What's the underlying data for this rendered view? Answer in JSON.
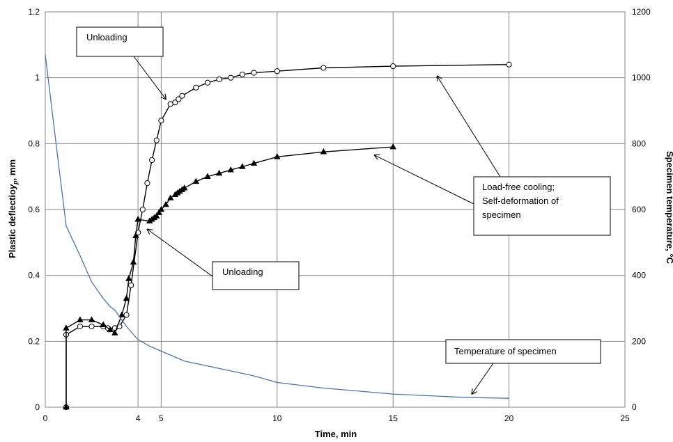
{
  "chart_data": {
    "type": "line",
    "xlabel": "Time, min",
    "ylabel": "Plastic deflection y_p, mm",
    "ylabel_main": "Plastic deflectio",
    "ylabel_sym": "y",
    "ylabel_sub": "p",
    "ylabel_tail": ", mm",
    "y2label": "Specimen temperature, °C",
    "xlim": [
      0,
      25
    ],
    "ylim": [
      0,
      1.2
    ],
    "y2lim": [
      0,
      1200
    ],
    "xticks": [
      0,
      4,
      5,
      10,
      15,
      20,
      25
    ],
    "yticks": [
      0,
      0.2,
      0.4,
      0.6,
      0.8,
      1,
      1.2
    ],
    "y2ticks": [
      0,
      200,
      400,
      600,
      800,
      1000,
      1200
    ],
    "grid": true,
    "series": [
      {
        "marker": "circle",
        "axis": "left",
        "color": "#000000",
        "x": [
          0.9,
          0.9,
          1.5,
          2.0,
          2.5,
          2.7,
          3.0,
          3.2,
          3.5,
          3.7,
          4.0,
          4.2,
          4.4,
          4.6,
          4.8,
          5.0,
          5.4,
          5.6,
          5.75,
          5.9,
          6.5,
          7.0,
          7.5,
          8.0,
          8.5,
          9.0,
          10.0,
          12.0,
          15.0,
          20.0
        ],
        "y": [
          0.0,
          0.22,
          0.245,
          0.245,
          0.245,
          0.24,
          0.24,
          0.245,
          0.28,
          0.37,
          0.53,
          0.6,
          0.68,
          0.75,
          0.81,
          0.87,
          0.92,
          0.925,
          0.935,
          0.945,
          0.97,
          0.985,
          0.995,
          1.0,
          1.01,
          1.015,
          1.02,
          1.03,
          1.035,
          1.04
        ]
      },
      {
        "marker": "triangle",
        "axis": "left",
        "color": "#000000",
        "x": [
          0.9,
          0.9,
          1.5,
          2.0,
          2.5,
          2.8,
          3.0,
          3.3,
          3.5,
          3.6,
          3.8,
          3.9,
          4.0,
          4.5,
          4.6,
          4.7,
          4.8,
          4.9,
          5.0,
          5.2,
          5.4,
          5.6,
          5.7,
          5.8,
          5.9,
          6.0,
          6.5,
          7.0,
          7.5,
          8.0,
          8.5,
          9.0,
          10.0,
          12.0,
          15.0
        ],
        "y": [
          0.0,
          0.24,
          0.265,
          0.265,
          0.25,
          0.235,
          0.225,
          0.28,
          0.33,
          0.39,
          0.44,
          0.52,
          0.57,
          0.565,
          0.57,
          0.575,
          0.58,
          0.59,
          0.6,
          0.615,
          0.635,
          0.645,
          0.65,
          0.655,
          0.66,
          0.665,
          0.685,
          0.7,
          0.71,
          0.72,
          0.73,
          0.74,
          0.76,
          0.775,
          0.79
        ]
      },
      {
        "marker": "none",
        "axis": "right",
        "color": "#4a74b4",
        "x": [
          0,
          0.5,
          0.9,
          1.5,
          2.0,
          2.5,
          2.8,
          3.0,
          3.5,
          4.0,
          4.5,
          5.0,
          6.0,
          7.0,
          8.0,
          9.0,
          10.0,
          12.0,
          15.0,
          18.0,
          20.0
        ],
        "y": [
          1070,
          780,
          550,
          460,
          380,
          330,
          305,
          295,
          245,
          205,
          185,
          170,
          140,
          125,
          110,
          95,
          75,
          58,
          40,
          30,
          27
        ]
      }
    ],
    "annotations": [
      {
        "text": "Unloading",
        "arrow_to": [
          5.2,
          0.935
        ]
      },
      {
        "text": "Unloading",
        "arrow_to": [
          4.4,
          0.54
        ]
      },
      {
        "lines": [
          "Load-free cooling;",
          "Self-deformation of",
          "specimen"
        ],
        "arrow_to": [
          [
            16.9,
            1.005
          ],
          [
            14.2,
            0.765
          ]
        ]
      },
      {
        "text": "Temperature of specimen",
        "arrow_to": [
          18.4,
          0.04
        ]
      }
    ]
  }
}
